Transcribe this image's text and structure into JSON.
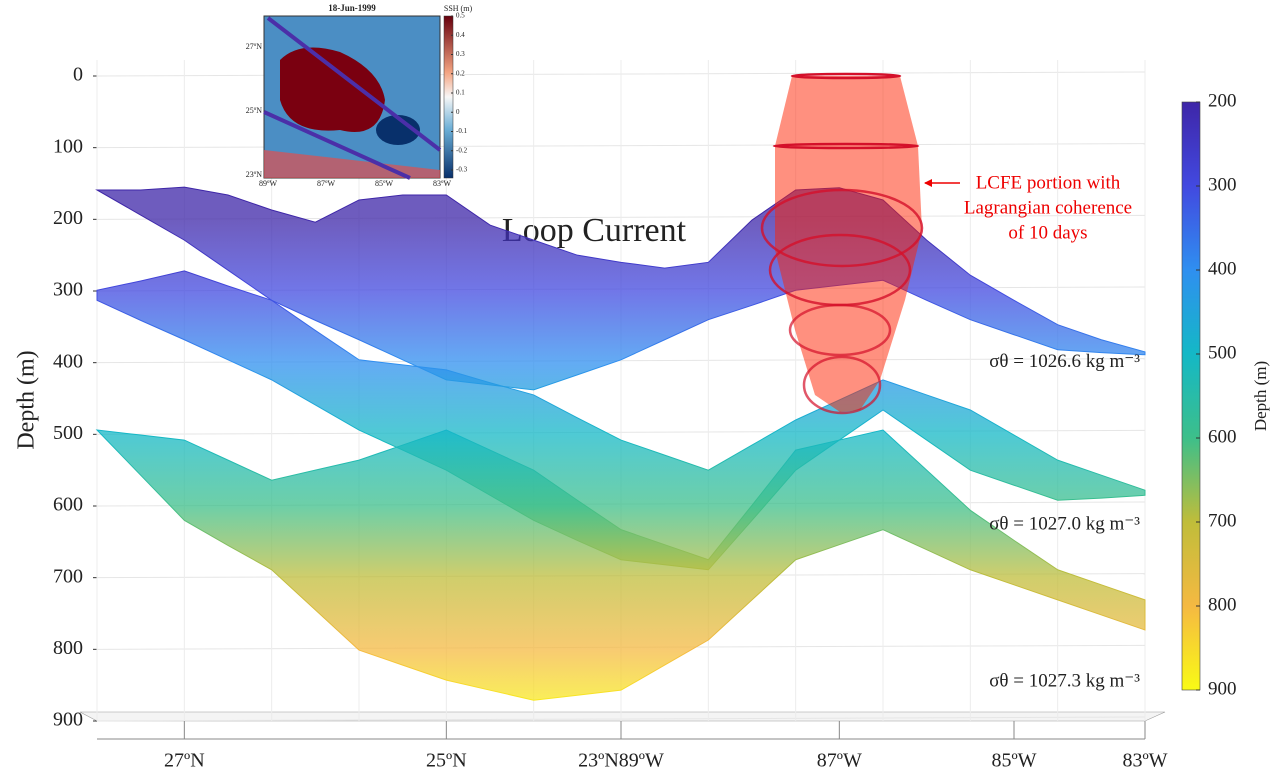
{
  "chart_data": {
    "type": "surface",
    "title": "Loop Current",
    "y_label": "Depth (m)",
    "ylim": [
      0,
      900
    ],
    "yticks": [
      0,
      100,
      200,
      300,
      400,
      500,
      600,
      700,
      800,
      900
    ],
    "y_inverted": true,
    "grid": true,
    "categories": [
      null,
      null,
      "27ºN",
      null,
      null,
      null,
      null,
      null,
      "25ºN",
      null,
      null,
      null,
      "23ºN89ºW",
      null,
      null,
      null,
      null,
      "87ºW",
      null,
      null,
      null,
      "85ºW",
      null,
      null,
      "83ºW"
    ],
    "colormap": [
      "#3e26a8",
      "#4249e0",
      "#2f8ff0",
      "#14b8c6",
      "#3dbf8a",
      "#c0bd3a",
      "#f5b942",
      "#f9fb15"
    ],
    "clim": [
      200,
      900
    ],
    "colorbar_ticks": [
      200,
      300,
      400,
      500,
      600,
      700,
      800,
      900
    ],
    "colorbar_label": "Depth (m)",
    "series": [
      {
        "name": "σθ = 1026.6 kg m⁻³",
        "values": [
          159,
          159,
          155,
          166,
          187,
          204,
          173,
          166,
          166,
          208,
          229,
          250,
          260,
          268,
          260,
          201,
          159,
          156,
          173,
          229,
          278,
          313,
          347,
          368,
          385
        ],
        "lower": [
          159,
          194,
          229,
          271,
          313,
          341,
          368,
          396,
          424,
          431,
          438,
          417,
          396,
          368,
          340,
          320,
          299,
          292,
          285,
          313,
          340,
          361,
          382,
          386,
          389
        ]
      },
      {
        "name": "σθ = 1027.0 kg m⁻³",
        "values": [
          299,
          286,
          272,
          293,
          313,
          355,
          396,
          403,
          410,
          428,
          445,
          477,
          508,
          529,
          550,
          515,
          480,
          452,
          424,
          445,
          466,
          501,
          536,
          557,
          578
        ],
        "lower": [
          313,
          341,
          368,
          396,
          424,
          459,
          494,
          522,
          550,
          585,
          620,
          648,
          675,
          682,
          689,
          620,
          550,
          508,
          466,
          508,
          550,
          571,
          592,
          589,
          585
        ]
      },
      {
        "name": "σθ = 1027.3 kg m⁻³",
        "values": [
          494,
          501,
          508,
          536,
          564,
          550,
          536,
          515,
          494,
          522,
          550,
          592,
          633,
          654,
          675,
          599,
          522,
          508,
          494,
          550,
          606,
          648,
          689,
          710,
          731
        ],
        "lower": [
          494,
          557,
          620,
          655,
          689,
          745,
          801,
          822,
          843,
          857,
          871,
          864,
          857,
          822,
          787,
          731,
          675,
          654,
          633,
          661,
          689,
          710,
          731,
          752,
          773
        ]
      }
    ],
    "annotation": [
      "LCFE portion with",
      "Lagrangian coherence",
      "of 10 days"
    ]
  },
  "inset": {
    "title": "18-Jun-1999",
    "colorbar_label": "SSH (m)",
    "colorbar_ticks": [
      0.5,
      0.4,
      0.3,
      0.2,
      0.1,
      0,
      -0.1,
      -0.2,
      -0.3
    ],
    "lat_labels": [
      "27ºN",
      "25ºN",
      "23ºN"
    ],
    "lon_labels": [
      "89ºW",
      "87ºW",
      "85ºW",
      "83ºW"
    ]
  }
}
